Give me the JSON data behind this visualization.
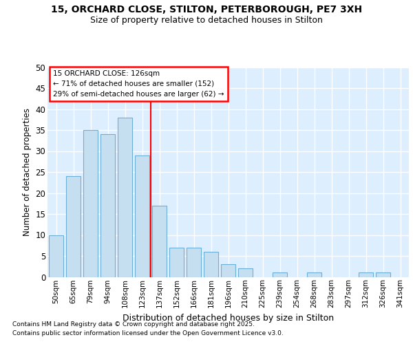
{
  "title_line1": "15, ORCHARD CLOSE, STILTON, PETERBOROUGH, PE7 3XH",
  "title_line2": "Size of property relative to detached houses in Stilton",
  "xlabel": "Distribution of detached houses by size in Stilton",
  "ylabel": "Number of detached properties",
  "categories": [
    "50sqm",
    "65sqm",
    "79sqm",
    "94sqm",
    "108sqm",
    "123sqm",
    "137sqm",
    "152sqm",
    "166sqm",
    "181sqm",
    "196sqm",
    "210sqm",
    "225sqm",
    "239sqm",
    "254sqm",
    "268sqm",
    "283sqm",
    "297sqm",
    "312sqm",
    "326sqm",
    "341sqm"
  ],
  "values": [
    10,
    24,
    35,
    34,
    38,
    29,
    17,
    7,
    7,
    6,
    3,
    2,
    0,
    1,
    0,
    1,
    0,
    0,
    1,
    1,
    0
  ],
  "bar_color": "#c5dff0",
  "bar_edge_color": "#6baed6",
  "property_line": "15 ORCHARD CLOSE: 126sqm",
  "annotation_line1": "← 71% of detached houses are smaller (152)",
  "annotation_line2": "29% of semi-detached houses are larger (62) →",
  "ylim": [
    0,
    50
  ],
  "yticks": [
    0,
    5,
    10,
    15,
    20,
    25,
    30,
    35,
    40,
    45,
    50
  ],
  "figure_bg": "#ffffff",
  "plot_bg_color": "#ddeeff",
  "grid_color": "#ffffff",
  "red_line_after_bin": 5,
  "footer_line1": "Contains HM Land Registry data © Crown copyright and database right 2025.",
  "footer_line2": "Contains public sector information licensed under the Open Government Licence v3.0."
}
